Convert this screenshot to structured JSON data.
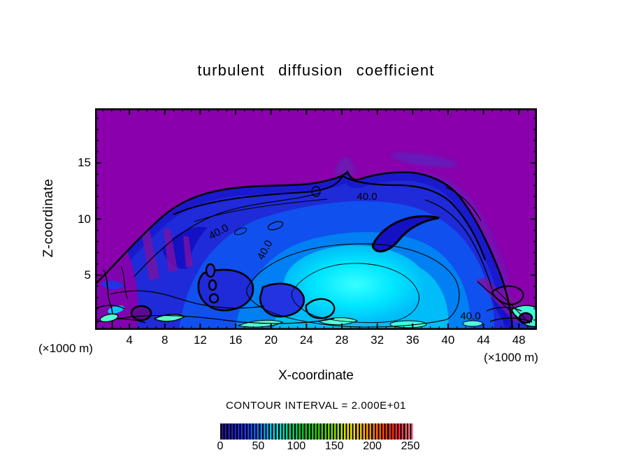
{
  "title": "turbulent diffusion coefficient",
  "chart_data": {
    "type": "heatmap",
    "title": "turbulent diffusion coefficient",
    "xlabel": "X-coordinate",
    "ylabel": "Z-coordinate",
    "x_unit_label": "(×1000 m)",
    "y_unit_label": "(×1000 m)",
    "xlim": [
      0,
      50
    ],
    "ylim": [
      0,
      20
    ],
    "x_ticks": [
      4,
      8,
      12,
      16,
      20,
      24,
      28,
      32,
      36,
      40,
      44,
      48
    ],
    "x_minor_tick_step": 1,
    "y_ticks": [
      5,
      10,
      15
    ],
    "y_minor_tick_step": 1,
    "grid": false,
    "contour_interval_value": 20,
    "contour_interval_label": "CONTOUR INTERVAL = 2.000E+01",
    "contour_labels": [
      {
        "text": "40.0",
        "x": 30.8,
        "z": 12.0
      },
      {
        "text": "40.0",
        "x": 14.2,
        "z": 8.7
      },
      {
        "text": "40.0",
        "x": 19.6,
        "z": 7.2
      },
      {
        "text": "40.0",
        "x": 42.4,
        "z": 1.2
      }
    ],
    "colorbar": {
      "min": 0,
      "max": 250,
      "ticks": [
        0,
        50,
        100,
        150,
        200,
        250
      ],
      "position": "bottom"
    },
    "field_regions": [
      {
        "color": "purple",
        "meaning": "lowest values (below first contour) filling upper part of domain, z above about 13"
      },
      {
        "color": "blue",
        "meaning": "moderate values in turbulent dome spanning x 0-50 below z of about 13"
      },
      {
        "color": "cyan",
        "meaning": "maximum region centered near x 29, z 4"
      }
    ]
  },
  "colors": {
    "background": "#ffffff",
    "low_value_purple": "#8a00ac",
    "mid_value_blue": "#1f2ad8",
    "light_blue": "#0080f2",
    "high_value_cyan": "#38ffff",
    "green_cyan": "#55ffd0",
    "contour_line": "#000000"
  }
}
